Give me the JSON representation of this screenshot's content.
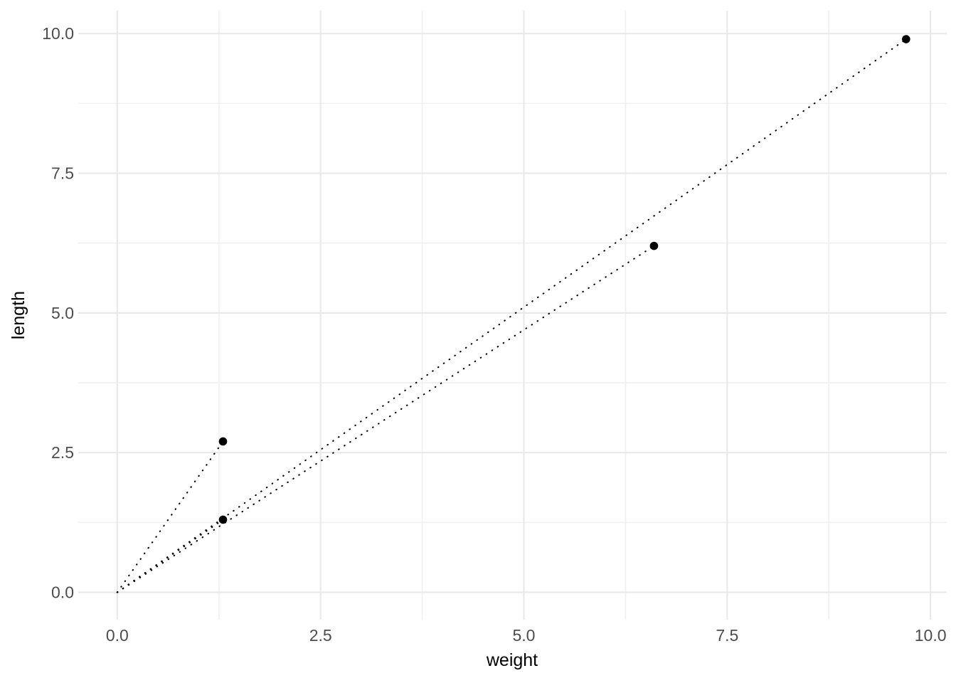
{
  "chart_data": {
    "type": "scatter",
    "title": "",
    "xlabel": "weight",
    "ylabel": "length",
    "points": [
      {
        "weight": 1.3,
        "length": 2.7
      },
      {
        "weight": 1.3,
        "length": 1.3
      },
      {
        "weight": 6.6,
        "length": 6.2
      },
      {
        "weight": 9.7,
        "length": 9.9
      }
    ],
    "segments_from_origin": true,
    "origin": {
      "weight": 0,
      "length": 0
    },
    "x_ticks": [
      0,
      2.5,
      5,
      7.5,
      10
    ],
    "x_tick_labels": [
      "0.0",
      "2.5",
      "5.0",
      "7.5",
      "10.0"
    ],
    "y_ticks": [
      0,
      2.5,
      5,
      7.5,
      10
    ],
    "y_tick_labels": [
      "0.0",
      "2.5",
      "5.0",
      "7.5",
      "10.0"
    ],
    "x_minor_ticks": [
      1.25,
      3.75,
      6.25,
      8.75
    ],
    "y_minor_ticks": [
      1.25,
      3.75,
      6.25,
      8.75
    ],
    "xlim": [
      -0.48,
      10.2
    ],
    "ylim": [
      -0.49,
      10.41
    ],
    "grid": true,
    "legend": "none",
    "style": {
      "background": "#ffffff",
      "grid_major_color": "#e9e9e9",
      "grid_minor_color": "#f0f0f0",
      "line_color": "#000000",
      "line_style": "dotted",
      "point_color": "#000000",
      "tick_label_color": "#4d4d4d",
      "axis_title_color": "#000000"
    }
  }
}
